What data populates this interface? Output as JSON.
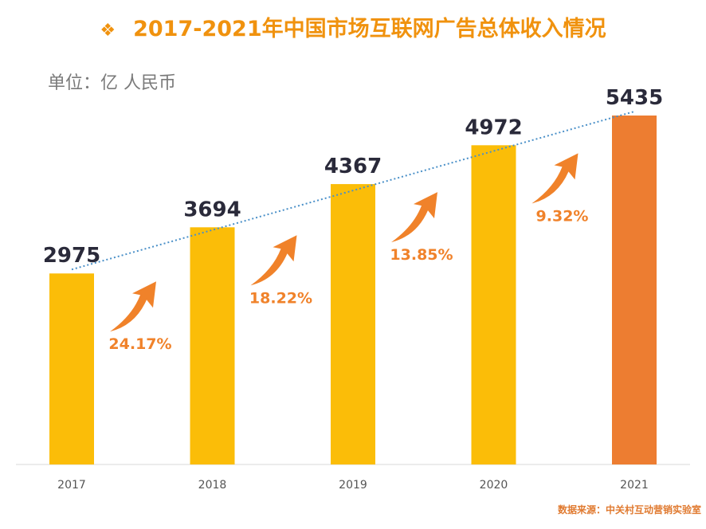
{
  "chart_data": {
    "type": "bar",
    "title": "2017-2021年中国市场互联网广告总体收入情况",
    "unit_label": "单位：亿 人民币",
    "categories": [
      "2017",
      "2018",
      "2019",
      "2020",
      "2021"
    ],
    "values": [
      2975,
      3694,
      4367,
      4972,
      5435
    ],
    "growth_labels": [
      "24.17%",
      "18.22%",
      "13.85%",
      "9.32%"
    ],
    "ylim": [
      0,
      5435
    ],
    "grid": false,
    "trendline": true,
    "colors": {
      "bar": "#fbbd08",
      "highlight_bar": "#ed7d31",
      "growth": "#f0822a",
      "trend": "#4a90c8",
      "title": "#f0920e"
    },
    "source": "数据来源：中关村互动营销实验室"
  }
}
